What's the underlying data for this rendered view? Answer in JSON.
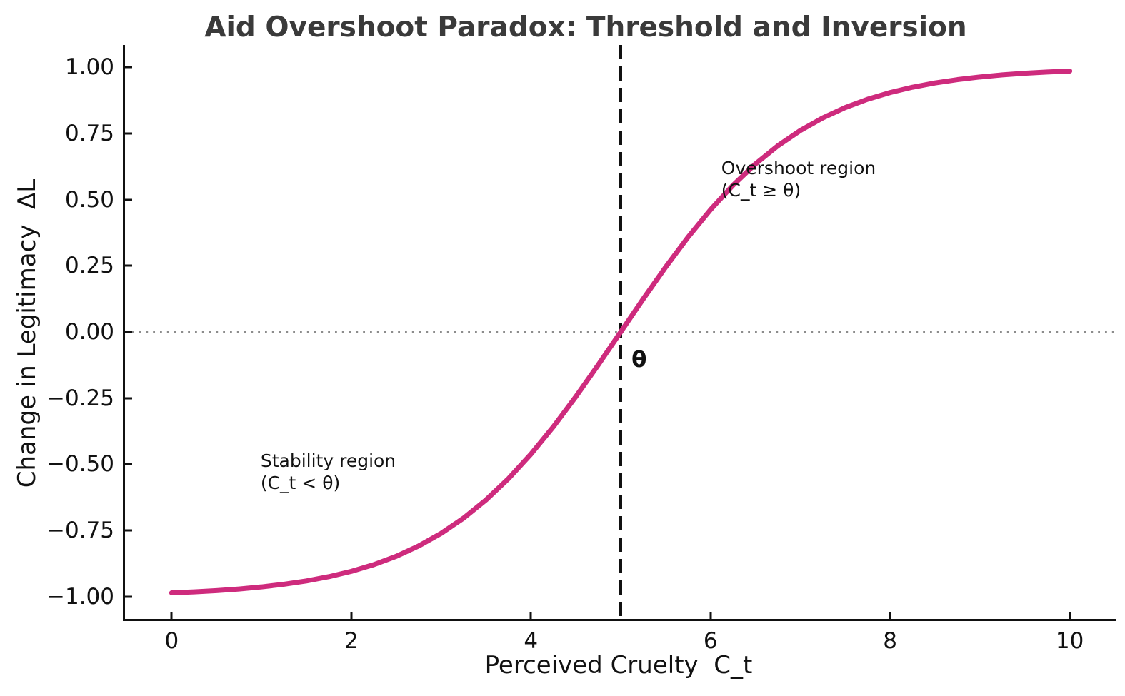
{
  "chart_data": {
    "type": "line",
    "title": "Aid Overshoot Paradox: Threshold and Inversion",
    "xlabel": "Perceived Cruelty  C_t",
    "ylabel": "Change in Legitimacy  ΔL",
    "xlim": [
      -0.52,
      10.52
    ],
    "ylim": [
      -1.085,
      1.085
    ],
    "grid": false,
    "legend": false,
    "x_ticks": [
      {
        "v": 0,
        "label": "0"
      },
      {
        "v": 2,
        "label": "2"
      },
      {
        "v": 4,
        "label": "4"
      },
      {
        "v": 6,
        "label": "6"
      },
      {
        "v": 8,
        "label": "8"
      },
      {
        "v": 10,
        "label": "10"
      }
    ],
    "y_ticks": [
      {
        "v": 1.0,
        "label": "1.00"
      },
      {
        "v": 0.75,
        "label": "0.75"
      },
      {
        "v": 0.5,
        "label": "0.50"
      },
      {
        "v": 0.25,
        "label": "0.25"
      },
      {
        "v": 0.0,
        "label": "0.00"
      },
      {
        "v": -0.25,
        "label": "−0.25"
      },
      {
        "v": -0.5,
        "label": "−0.50"
      },
      {
        "v": -0.75,
        "label": "−0.75"
      },
      {
        "v": -1.0,
        "label": "−1.00"
      }
    ],
    "series": [
      {
        "name": "legitimacy-change-curve",
        "color": "#ce2b7d",
        "line_width": 7,
        "x": [
          0,
          0.25,
          0.5,
          0.75,
          1,
          1.25,
          1.5,
          1.75,
          2,
          2.25,
          2.5,
          2.75,
          3,
          3.25,
          3.5,
          3.75,
          4,
          4.25,
          4.5,
          4.75,
          5,
          5.25,
          5.5,
          5.75,
          6,
          6.25,
          6.5,
          6.75,
          7,
          7.25,
          7.5,
          7.75,
          8,
          8.25,
          8.5,
          8.75,
          9,
          9.25,
          9.5,
          9.75,
          10
        ],
        "y": [
          -0.9866,
          -0.9828,
          -0.978,
          -0.9719,
          -0.964,
          -0.954,
          -0.9414,
          -0.9254,
          -0.9051,
          -0.8798,
          -0.8483,
          -0.8093,
          -0.7616,
          -0.7039,
          -0.6351,
          -0.5546,
          -0.4621,
          -0.3584,
          -0.2449,
          -0.1244,
          0,
          0.1244,
          0.2449,
          0.3584,
          0.4621,
          0.5546,
          0.6351,
          0.7039,
          0.7616,
          0.8093,
          0.8483,
          0.8798,
          0.9051,
          0.9254,
          0.9414,
          0.954,
          0.964,
          0.9719,
          0.978,
          0.9828,
          0.9866
        ]
      }
    ],
    "threshold_line": {
      "x": 5,
      "style": "dashed",
      "color": "#111111",
      "width": 4
    },
    "zero_line": {
      "y": 0,
      "style": "dotted",
      "color": "#8c8c8c",
      "width": 2.8
    },
    "annotations": [
      {
        "name": "overshoot-region-label",
        "x": 6.12,
        "y": 0.66,
        "bold": false,
        "lines": [
          "Overshoot region",
          "(C_t ≥ θ)"
        ]
      },
      {
        "name": "stability-region-label",
        "x": 0.99,
        "y": -0.445,
        "bold": false,
        "lines": [
          "Stability region",
          "(C_t < θ)"
        ]
      },
      {
        "name": "theta-label",
        "x": 5.12,
        "y": -0.06,
        "bold": true,
        "lines": [
          "θ"
        ]
      }
    ],
    "colors": {
      "curve": "#ce2b7d",
      "title": "#3a3a3a",
      "axis_text": "#111111",
      "spine": "#111111",
      "zero_line": "#8c8c8c",
      "threshold_line": "#111111"
    }
  }
}
